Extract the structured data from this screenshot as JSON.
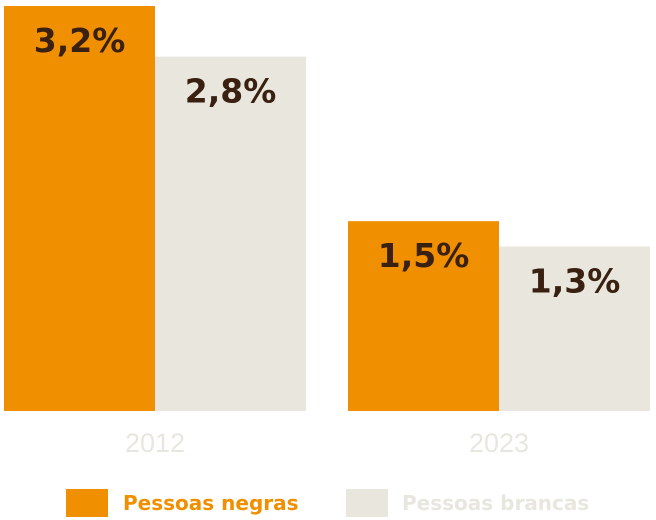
{
  "chart_data": {
    "type": "bar",
    "categories": [
      "2012",
      "2023"
    ],
    "series": [
      {
        "name": "Pessoas negras",
        "values": [
          3.2,
          1.5
        ],
        "labels": [
          "3,2%",
          "1,5%"
        ],
        "color": "#f08f00"
      },
      {
        "name": "Pessoas brancas",
        "values": [
          2.8,
          1.3
        ],
        "labels": [
          "2,8%",
          "1,3%"
        ],
        "color": "#e9e7dd"
      }
    ],
    "ylim": [
      0,
      3.2
    ],
    "title": "",
    "xlabel": "",
    "ylabel": "",
    "legend_position": "bottom",
    "grid": false
  },
  "colors": {
    "label_text": "#3a2010",
    "category_text": "#e8e6df",
    "legend_negras_text": "#f08f00",
    "legend_brancas_text": "#e8e6df"
  }
}
